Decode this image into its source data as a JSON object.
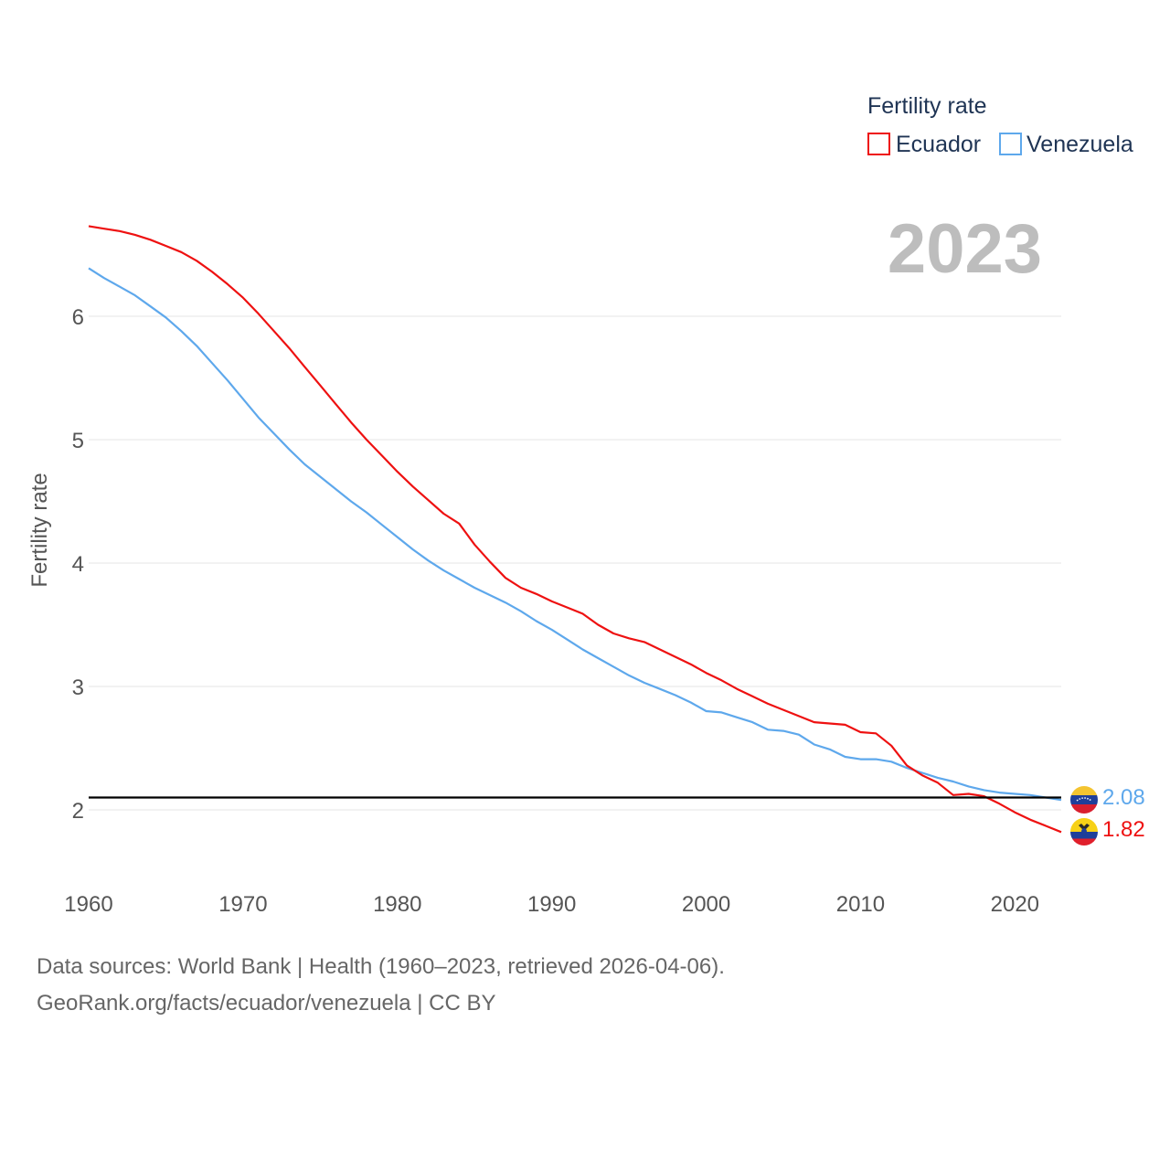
{
  "chart_data": {
    "type": "line",
    "legend_title": "Fertility rate",
    "legend_position": "top-right",
    "ylabel": "Fertility rate",
    "xlabel": "",
    "current_year": "2023",
    "xlim": [
      1960,
      2023
    ],
    "ylim": [
      1.6,
      7.0
    ],
    "x_ticks": [
      1960,
      1970,
      1980,
      1990,
      2000,
      2010,
      2020
    ],
    "y_ticks": [
      2,
      3,
      4,
      5,
      6
    ],
    "grid": true,
    "reference_line": {
      "value": 2.1,
      "color": "#000000"
    },
    "x": [
      1960,
      1961,
      1962,
      1963,
      1964,
      1965,
      1966,
      1967,
      1968,
      1969,
      1970,
      1971,
      1972,
      1973,
      1974,
      1975,
      1976,
      1977,
      1978,
      1979,
      1980,
      1981,
      1982,
      1983,
      1984,
      1985,
      1986,
      1987,
      1988,
      1989,
      1990,
      1991,
      1992,
      1993,
      1994,
      1995,
      1996,
      1997,
      1998,
      1999,
      2000,
      2001,
      2002,
      2003,
      2004,
      2005,
      2006,
      2007,
      2008,
      2009,
      2010,
      2011,
      2012,
      2013,
      2014,
      2015,
      2016,
      2017,
      2018,
      2019,
      2020,
      2021,
      2022,
      2023
    ],
    "series": [
      {
        "name": "Ecuador",
        "color": "#ee1111",
        "end_label": "1.82",
        "values": [
          6.73,
          6.71,
          6.69,
          6.66,
          6.62,
          6.57,
          6.52,
          6.45,
          6.36,
          6.26,
          6.15,
          6.02,
          5.88,
          5.74,
          5.59,
          5.44,
          5.29,
          5.14,
          5.0,
          4.87,
          4.74,
          4.62,
          4.51,
          4.4,
          4.32,
          4.15,
          4.01,
          3.88,
          3.8,
          3.75,
          3.69,
          3.64,
          3.59,
          3.5,
          3.43,
          3.39,
          3.36,
          3.3,
          3.24,
          3.18,
          3.11,
          3.05,
          2.98,
          2.92,
          2.86,
          2.81,
          2.76,
          2.71,
          2.7,
          2.69,
          2.63,
          2.62,
          2.52,
          2.36,
          2.28,
          2.22,
          2.12,
          2.13,
          2.11,
          2.05,
          1.98,
          1.92,
          1.87,
          1.82
        ]
      },
      {
        "name": "Venezuela",
        "color": "#5ea8ec",
        "end_label": "2.08",
        "values": [
          6.39,
          6.31,
          6.24,
          6.17,
          6.08,
          5.99,
          5.88,
          5.76,
          5.62,
          5.48,
          5.33,
          5.18,
          5.05,
          4.92,
          4.8,
          4.7,
          4.6,
          4.5,
          4.41,
          4.31,
          4.21,
          4.11,
          4.02,
          3.94,
          3.87,
          3.8,
          3.74,
          3.68,
          3.61,
          3.53,
          3.46,
          3.38,
          3.3,
          3.23,
          3.16,
          3.09,
          3.03,
          2.98,
          2.93,
          2.87,
          2.8,
          2.79,
          2.75,
          2.71,
          2.65,
          2.64,
          2.61,
          2.53,
          2.49,
          2.43,
          2.41,
          2.41,
          2.39,
          2.34,
          2.3,
          2.26,
          2.23,
          2.19,
          2.16,
          2.14,
          2.13,
          2.12,
          2.1,
          2.08
        ]
      }
    ]
  },
  "footer": {
    "line1": "Data sources: World Bank | Health (1960–2023, retrieved 2026-04-06).",
    "line2": "GeoRank.org/facts/ecuador/venezuela | CC BY"
  },
  "flags": {
    "venezuela": {
      "top": "#f4c430",
      "middle": "#1f3f9a",
      "bottom": "#d9202f",
      "stars": "#ffffff"
    },
    "ecuador": {
      "top": "#f7d117",
      "middle": "#1f3f9a",
      "bottom": "#e01f2b",
      "emblem": "#2a2a2a"
    }
  }
}
